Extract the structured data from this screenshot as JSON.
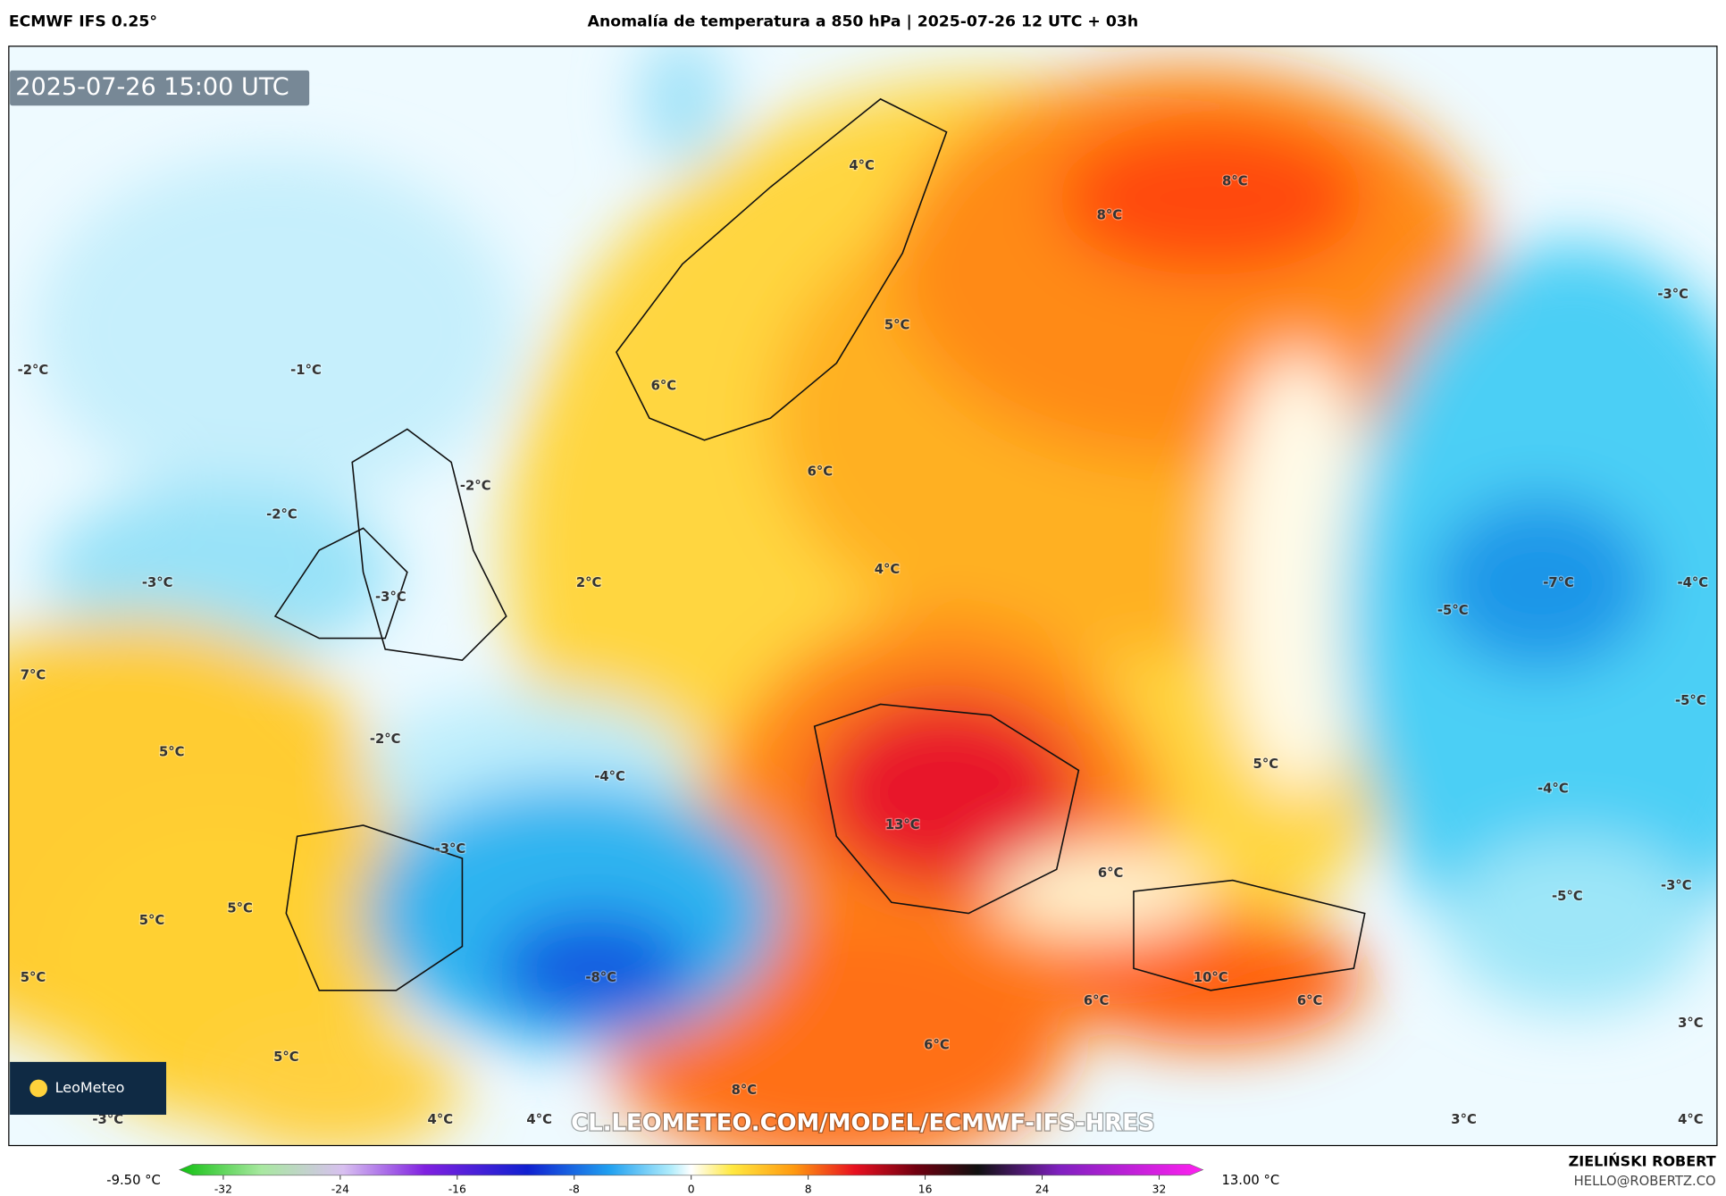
{
  "header": {
    "left": "ECMWF IFS 0.25°",
    "title": "Anomalía de temperatura a 850 hPa | 2025-07-26 12 UTC + 03h"
  },
  "map": {
    "timestamp": "2025-07-26 15:00 UTC",
    "labels": [
      "4°C",
      "8°C",
      "8°C",
      "5°C",
      "-3°C",
      "-2°C",
      "-1°C",
      "6°C",
      "-2°C",
      "-2°C",
      "6°C",
      "-3°C",
      "-3°C",
      "2°C",
      "4°C",
      "-7°C",
      "-5°C",
      "-4°C",
      "7°C",
      "-5°C",
      "5°C",
      "-2°C",
      "-4°C",
      "5°C",
      "13°C",
      "-4°C",
      "-3°C",
      "6°C",
      "-5°C",
      "-3°C",
      "5°C",
      "5°C",
      "5°C",
      "-8°C",
      "10°C",
      "6°C",
      "6°C",
      "6°C",
      "5°C",
      "3°C",
      "8°C",
      "4°C",
      "4°C",
      "-3°C",
      "3°C",
      "4°C"
    ],
    "watermark": "CL.LEOMETEO.COM/MODEL/ECMWF-IFS-HRES"
  },
  "logo": {
    "text": "LeoMeteo"
  },
  "colorbar": {
    "min_label": "-9.50 °C",
    "max_label": "13.00 °C",
    "lim": [
      -35,
      35
    ],
    "ticks": [
      -32,
      -24,
      -16,
      -8,
      0,
      8,
      16,
      24,
      32
    ]
  },
  "footer": {
    "author": "ZIELIŃSKI ROBERT",
    "email": "HELLO@ROBERTZ.CO"
  }
}
